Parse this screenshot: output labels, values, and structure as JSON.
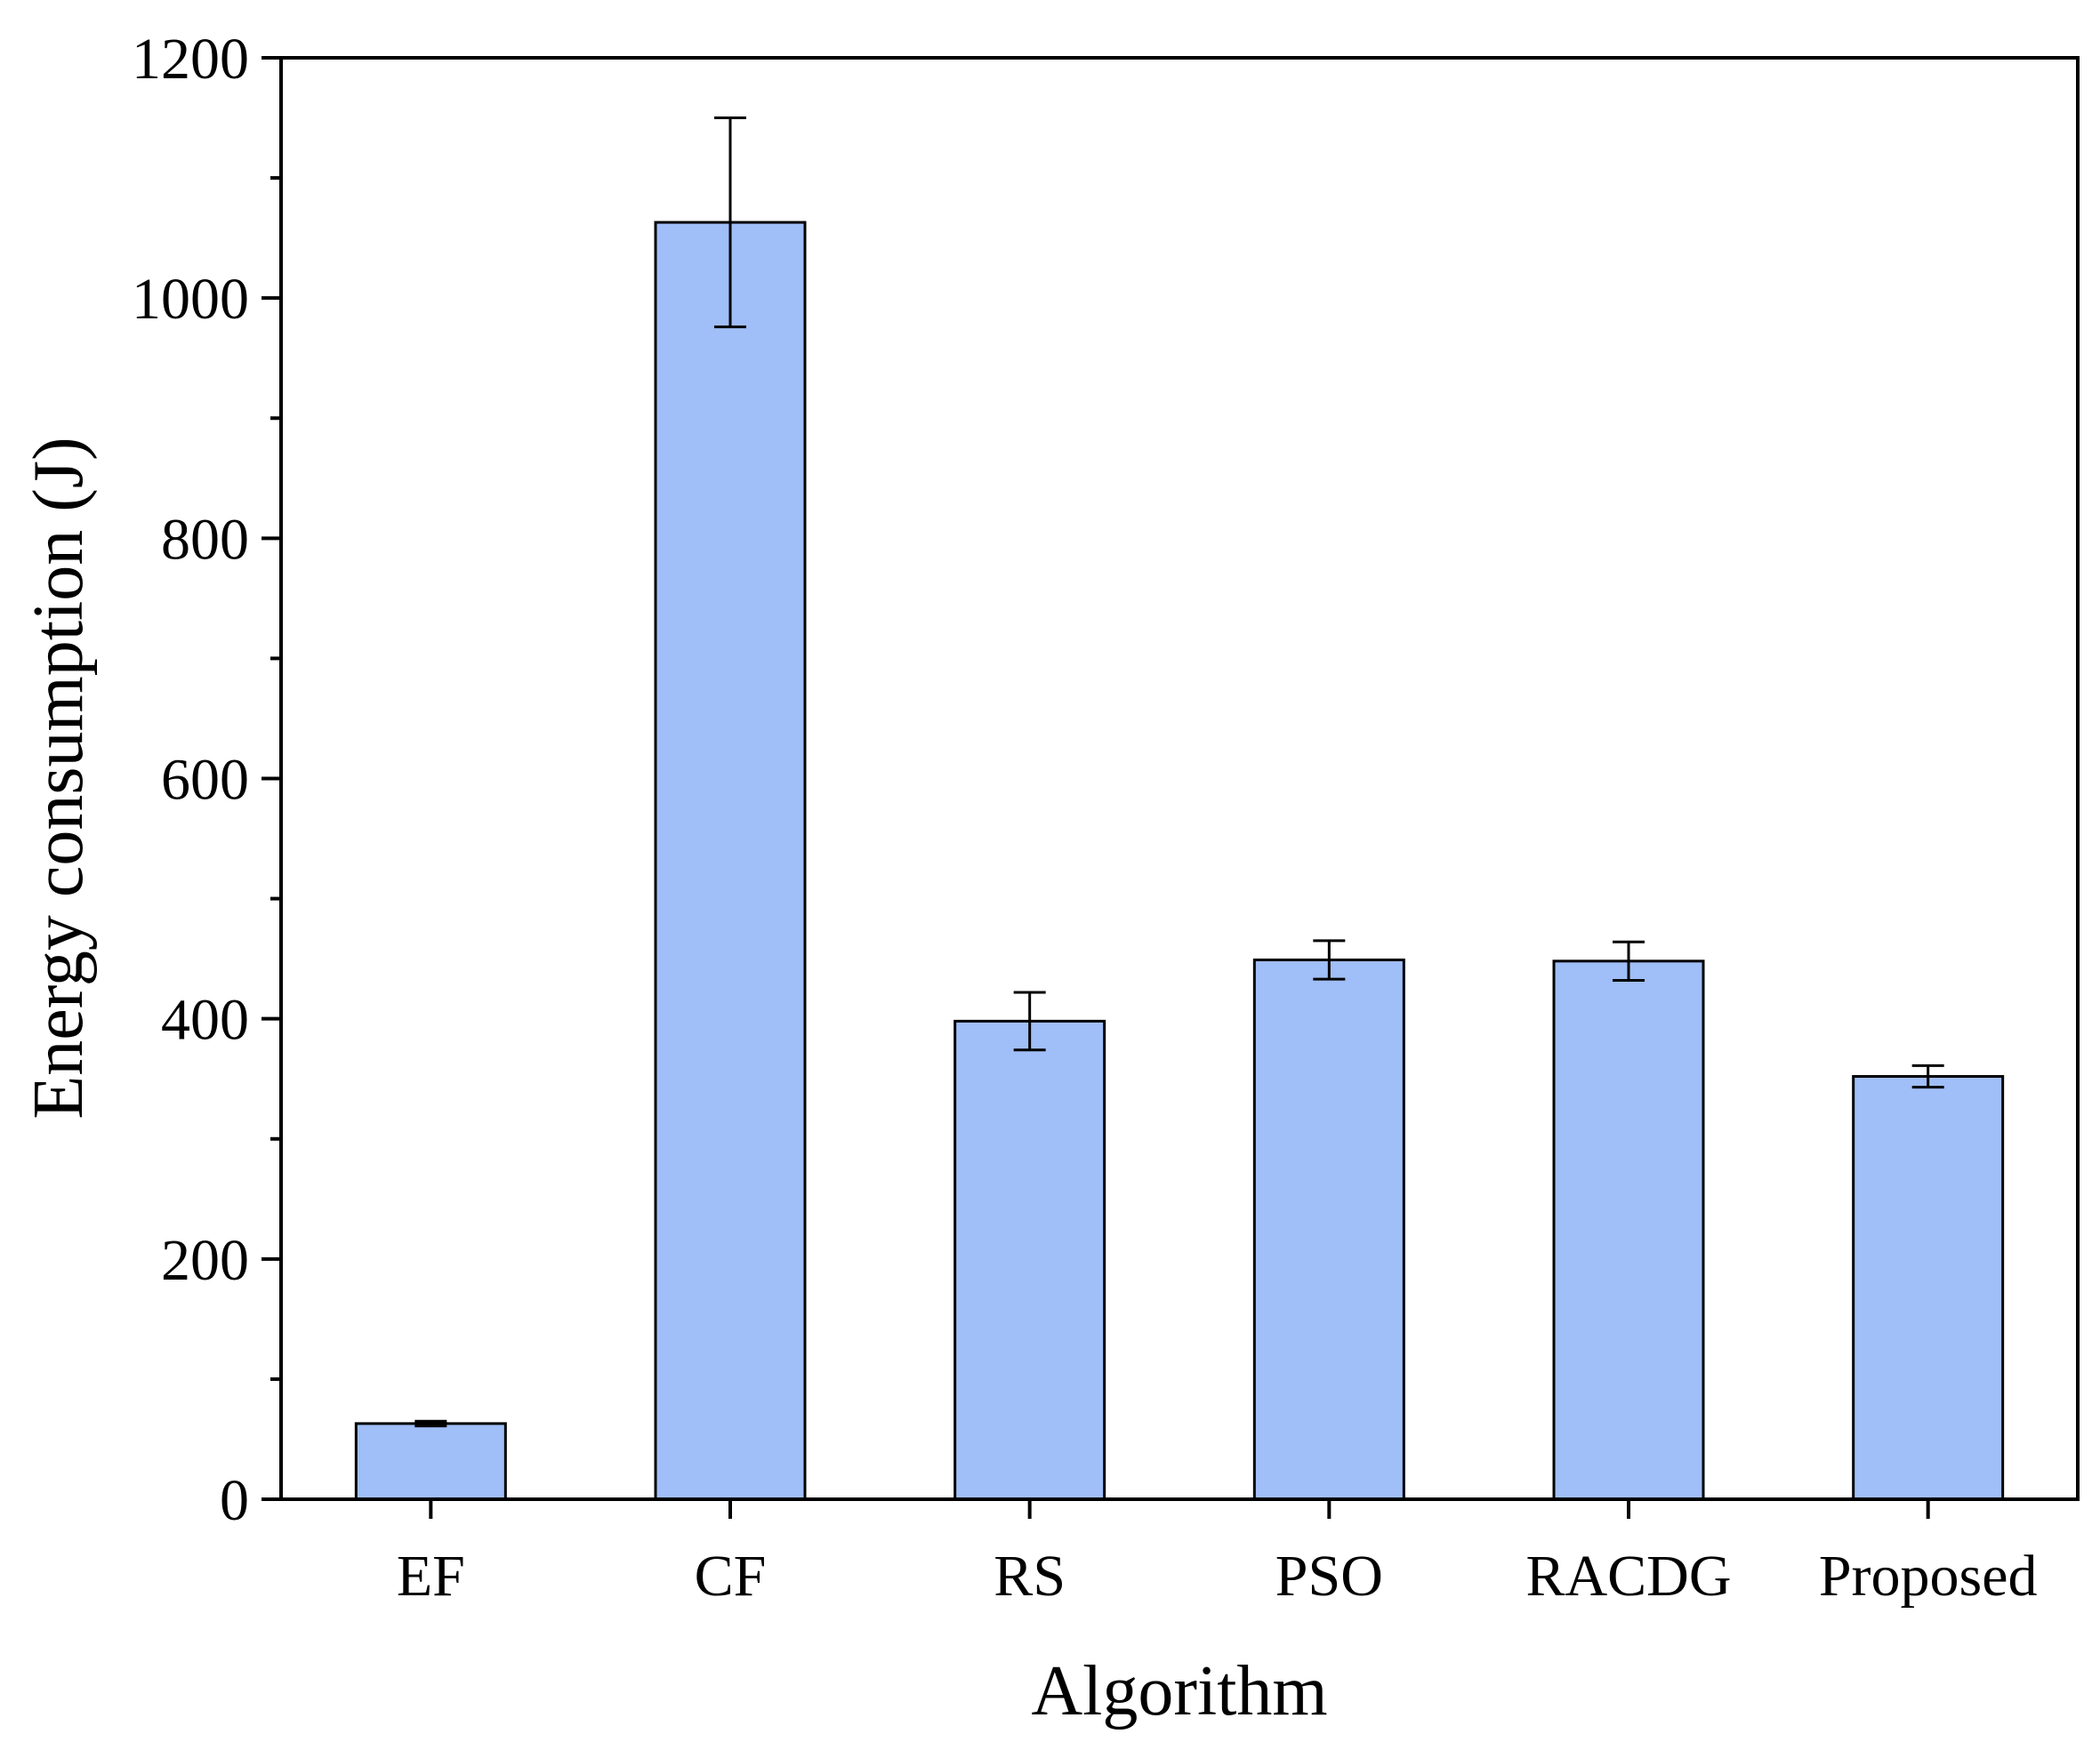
{
  "chart_data": {
    "type": "bar",
    "title": "",
    "xlabel": "Algorithm",
    "ylabel": "Energy consumption (J)",
    "categories": [
      "EF",
      "CF",
      "RS",
      "PSO",
      "RACDG",
      "Proposed"
    ],
    "values": [
      63,
      1063,
      398,
      449,
      448,
      352
    ],
    "errors": [
      2,
      87,
      24,
      16,
      16,
      9
    ],
    "ylim": [
      0,
      1200
    ],
    "yticks": [
      0,
      200,
      400,
      600,
      800,
      1000,
      1200
    ],
    "yticks_labels": [
      "0",
      "200",
      "400",
      "600",
      "800",
      "1000",
      "1200"
    ],
    "grid": false,
    "legend": "none",
    "colors": {
      "bar_fill": "#a0bef7",
      "bar_stroke": "#000000",
      "axis": "#000000"
    }
  }
}
